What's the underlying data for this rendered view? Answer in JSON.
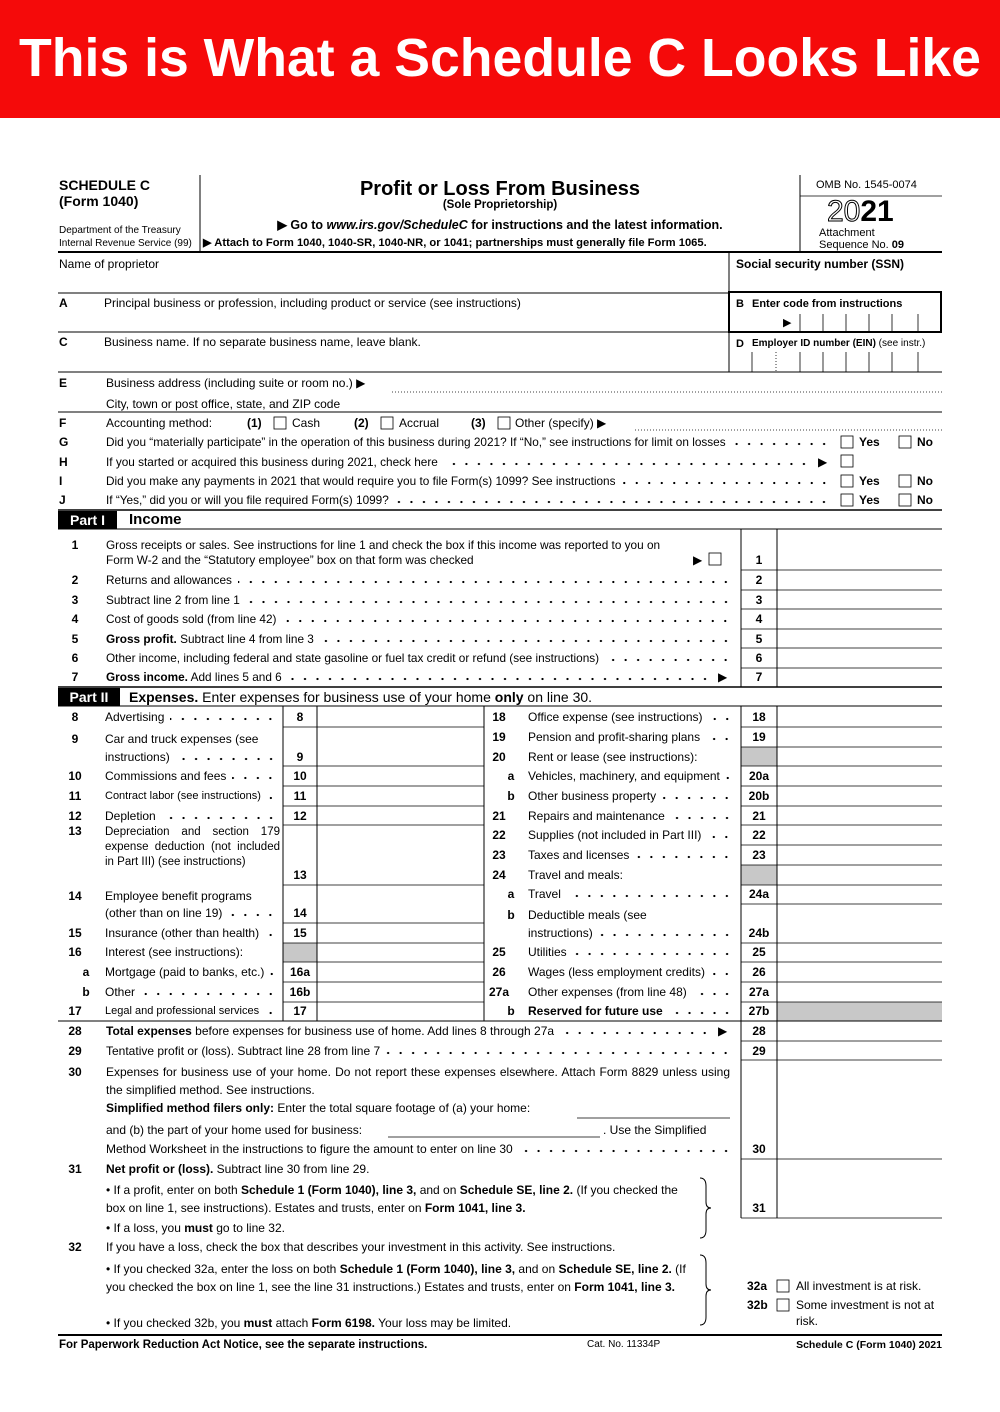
{
  "banner": "This is What a Schedule C Looks Like",
  "header": {
    "schedule": "SCHEDULE C",
    "form": "(Form 1040)",
    "dept": "Department of the Treasury",
    "irs": "Internal Revenue Service (99)",
    "title": "Profit or Loss From Business",
    "subtitle": "(Sole Proprietorship)",
    "goto": [
      "▶ Go to ",
      "www.irs.gov/ScheduleC",
      " for instructions and the latest information."
    ],
    "attach": "▶ Attach to Form 1040, 1040-SR, 1040-NR, or 1041; partnerships must generally file Form 1065.",
    "omb": "OMB No. 1545-0074",
    "year": [
      "20",
      "21"
    ],
    "attachment": "Attachment",
    "sequence": [
      "Sequence No. ",
      "09"
    ]
  },
  "top": {
    "name": "Name of proprietor",
    "ssn": "Social security number (SSN)",
    "A": {
      "letter": "A",
      "text": "Principal business or profession, including product or service (see instructions)"
    },
    "B": {
      "letter": "B",
      "text": "Enter code from instructions",
      "arrow": "▶"
    },
    "C": {
      "letter": "C",
      "text": "Business name. If no separate business name, leave blank."
    },
    "D": {
      "letter": "D",
      "text": [
        "Employer ID number (EIN)",
        " (see instr.)"
      ]
    },
    "E": {
      "letter": "E",
      "text": "Business address (including suite or room no.) ▶",
      "city": "City, town or post office, state, and ZIP code"
    },
    "F": {
      "letter": "F",
      "text": "Accounting method:",
      "options": [
        [
          "(1)",
          "Cash"
        ],
        [
          "(2)",
          "Accrual"
        ],
        [
          "(3)",
          "Other (specify) ▶"
        ]
      ]
    },
    "G": {
      "letter": "G",
      "text": "Did you “materially participate” in the operation of this business during 2021? If “No,” see instructions for limit on losses",
      "yes": "Yes",
      "no": "No"
    },
    "H": {
      "letter": "H",
      "text": "If you started or acquired this business during 2021, check here",
      "arrow": "▶"
    },
    "I": {
      "letter": "I",
      "text": "Did you make any payments in 2021 that would require you to file Form(s) 1099? See instructions",
      "yes": "Yes",
      "no": "No"
    },
    "J": {
      "letter": "J",
      "text": "If “Yes,” did you or will you file required Form(s) 1099?",
      "yes": "Yes",
      "no": "No"
    }
  },
  "part1": {
    "label": "Part I",
    "title": "Income",
    "lines": [
      {
        "num": "1",
        "text": [
          "Gross receipts or sales. See instructions for line 1 and check the box if this income was reported to you on",
          "Form W-2 and the “Statutory employee” box on that form was checked"
        ],
        "arrow": "▶",
        "box": "1"
      },
      {
        "num": "2",
        "text": "Returns and allowances",
        "box": "2"
      },
      {
        "num": "3",
        "text": "Subtract line 2 from line 1",
        "box": "3"
      },
      {
        "num": "4",
        "text": "Cost of goods sold (from line 42)",
        "box": "4"
      },
      {
        "num": "5",
        "text": [
          "Gross profit.",
          " Subtract line 4 from line 3"
        ],
        "box": "5"
      },
      {
        "num": "6",
        "text": "Other income, including federal and state gasoline or fuel tax credit or refund (see instructions)",
        "box": "6"
      },
      {
        "num": "7",
        "text": [
          "Gross income.",
          " Add lines 5 and 6"
        ],
        "arrow": "▶",
        "box": "7"
      }
    ]
  },
  "part2": {
    "label": "Part II",
    "title": [
      "Expenses.",
      " Enter expenses for business use of your home ",
      "only",
      " on line 30."
    ],
    "left": [
      {
        "num": "8",
        "text": "Advertising",
        "box": "8"
      },
      {
        "num": "9",
        "text": [
          "Car and truck expenses (see",
          "instructions)"
        ],
        "box": "9"
      },
      {
        "num": "10",
        "text": "Commissions and fees",
        "box": "10"
      },
      {
        "num": "11",
        "text": "Contract labor (see instructions)",
        "box": "11"
      },
      {
        "num": "12",
        "text": "Depletion",
        "box": "12"
      },
      {
        "num": "13",
        "text": "Depreciation and section 179 expense deduction (not included in Part III) (see instructions)",
        "box": "13"
      },
      {
        "num": "14",
        "text": [
          "Employee benefit programs",
          "(other than on line 19)"
        ],
        "box": "14"
      },
      {
        "num": "15",
        "text": "Insurance (other than health)",
        "box": "15"
      },
      {
        "num": "16",
        "text": "Interest (see instructions):"
      },
      {
        "num": "a",
        "text": "Mortgage (paid to banks, etc.)",
        "box": "16a"
      },
      {
        "num": "b",
        "text": "Other",
        "box": "16b"
      },
      {
        "num": "17",
        "text": "Legal and professional services",
        "box": "17"
      }
    ],
    "right": [
      {
        "num": "18",
        "text": "Office expense (see instructions)",
        "box": "18"
      },
      {
        "num": "19",
        "text": "Pension and profit-sharing plans",
        "box": "19"
      },
      {
        "num": "20",
        "text": "Rent or lease (see instructions):"
      },
      {
        "num": "a",
        "text": "Vehicles, machinery, and equipment",
        "box": "20a"
      },
      {
        "num": "b",
        "text": "Other business property",
        "box": "20b"
      },
      {
        "num": "21",
        "text": "Repairs and maintenance",
        "box": "21"
      },
      {
        "num": "22",
        "text": "Supplies (not included in Part III)",
        "box": "22"
      },
      {
        "num": "23",
        "text": "Taxes and licenses",
        "box": "23"
      },
      {
        "num": "24",
        "text": "Travel and meals:"
      },
      {
        "num": "a",
        "text": "Travel",
        "box": "24a"
      },
      {
        "num": "b",
        "text": [
          "Deductible meals (see",
          "instructions)"
        ],
        "box": "24b"
      },
      {
        "num": "25",
        "text": "Utilities",
        "box": "25"
      },
      {
        "num": "26",
        "text": "Wages (less employment credits)",
        "box": "26"
      },
      {
        "num": "27a",
        "text": "Other expenses (from line 48)",
        "box": "27a"
      },
      {
        "num": "b",
        "text": "Reserved for future use",
        "box": "27b"
      }
    ]
  },
  "bottom": {
    "l28": {
      "num": "28",
      "text": [
        "Total expenses",
        " before expenses for business use of home. Add lines 8 through 27a"
      ],
      "arrow": "▶",
      "box": "28"
    },
    "l29": {
      "num": "29",
      "text": "Tentative profit or (loss). Subtract line 28 from line 7",
      "box": "29"
    },
    "l30": {
      "num": "30",
      "text": "Expenses for business use of your home. Do not report these expenses elsewhere. Attach Form 8829 unless using the simplified method. See instructions.",
      "simplified": [
        "Simplified method filers only:",
        " Enter the total square footage of (a) your home:"
      ],
      "part_b": "and (b) the part of your home used for business:",
      "use": ". Use the Simplified",
      "worksheet": "Method Worksheet in the instructions to figure the amount to enter on line 30",
      "box": "30"
    },
    "l31": {
      "num": "31",
      "text": [
        "Net profit or (loss).",
        " Subtract line 30 from line 29."
      ],
      "profit": [
        "• If a profit, enter on both ",
        "Schedule 1 (Form 1040), line 3,",
        " and on ",
        "Schedule SE, line 2.",
        " (If you checked the box on line 1, see instructions). Estates and trusts, enter on ",
        "Form 1041, line 3."
      ],
      "loss": [
        "• If a loss, you ",
        "must",
        " go to line 32."
      ],
      "box": "31"
    },
    "l32": {
      "num": "32",
      "text": "If you have a loss, check the box that describes your investment in this activity. See instructions.",
      "a_bullet": [
        "• If you checked 32a, enter the loss on both ",
        "Schedule 1 (Form 1040), line 3,",
        " and on ",
        "Schedule SE, line 2.",
        " (If you checked the box on line 1, see the line 31 instructions.) Estates and trusts, enter on ",
        "Form 1041, line 3."
      ],
      "b_bullet": [
        "• If you checked 32b, you ",
        "must",
        " attach ",
        "Form 6198.",
        " Your loss may be limited."
      ],
      "a": {
        "label": "32a",
        "text": "All investment is at risk."
      },
      "b": {
        "label": "32b",
        "text": "Some investment is not at risk."
      }
    }
  },
  "footer": {
    "left": "For Paperwork Reduction Act Notice, see the separate instructions.",
    "cat": "Cat. No. 11334P",
    "right": "Schedule C (Form 1040) 2021"
  }
}
